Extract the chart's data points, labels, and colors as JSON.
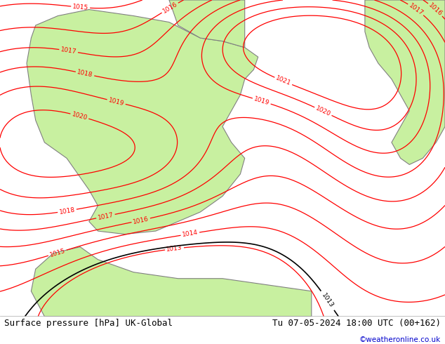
{
  "title_left": "Surface pressure [hPa] UK-Global",
  "title_right": "Tu 07-05-2024 18:00 UTC (00+162)",
  "copyright": "©weatheronline.co.uk",
  "bg_color_land_green": "#c8f0a0",
  "bg_color_sea": "#e8e8e8",
  "contour_color_red": "#ff0000",
  "contour_color_black": "#000000",
  "contour_color_blue": "#0000ff",
  "border_color": "#808080",
  "title_bar_color": "#d0d0d0",
  "title_fontsize": 9,
  "copyright_color": "#0000cc",
  "figsize": [
    6.34,
    4.9
  ],
  "dpi": 100,
  "isobar_labels_red": [
    "1015",
    "1019",
    "1020",
    "1019",
    "1019",
    "1018",
    "1017",
    "1019",
    "1018",
    "1017",
    "1016",
    "1017",
    "1015",
    "1015",
    "1016",
    "1017",
    "1018",
    "1017",
    "1017",
    "1018",
    "1014",
    "1015",
    "1016",
    "1014",
    "1014",
    "1015",
    "1013",
    "1013",
    "1014",
    "1016",
    "1017",
    "1018",
    "1019",
    "1020",
    "1019",
    "1018",
    "1017",
    "1016",
    "1015",
    "1014",
    "1017"
  ],
  "isobar_labels_black": [
    "1013",
    "1013"
  ],
  "isobar_labels_blue": []
}
